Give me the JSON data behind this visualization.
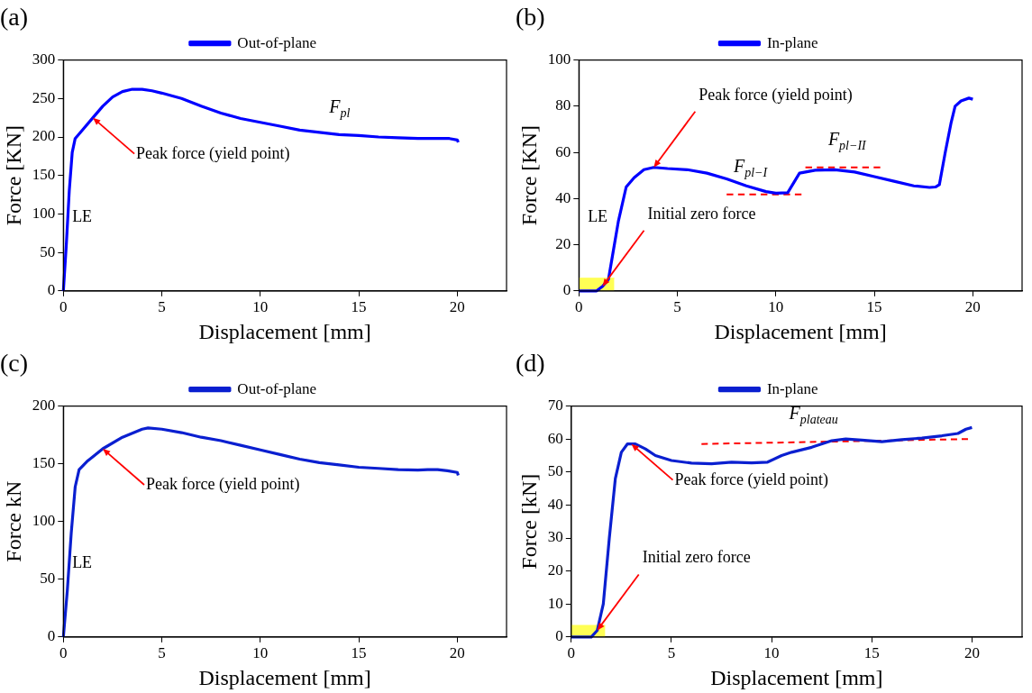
{
  "chart_data": [
    {
      "type": "line",
      "title": "(a)",
      "xlabel": "Displacement [mm]",
      "ylabel": "Force [KN]",
      "xlim": [
        0,
        22.5
      ],
      "xticks": [
        0,
        5,
        10,
        15,
        20
      ],
      "ylim": [
        0,
        300
      ],
      "yticks": [
        0,
        50,
        100,
        150,
        200,
        250,
        300
      ],
      "legend": "top",
      "marker": "none",
      "grid": false,
      "series": [
        {
          "name": "Out-of-plane",
          "color": "#0000ff",
          "x": [
            0,
            0.15,
            0.3,
            0.45,
            0.6,
            1,
            1.5,
            2,
            2.5,
            3,
            3.5,
            4,
            4.5,
            5,
            6,
            7,
            8,
            9,
            10,
            11,
            12,
            13,
            14,
            15,
            16,
            17,
            18,
            19,
            19.6,
            20,
            20.05
          ],
          "values": [
            0,
            60,
            130,
            180,
            198,
            210,
            225,
            240,
            252,
            259,
            262,
            262,
            260,
            257,
            250,
            240,
            231,
            224,
            219,
            214,
            209,
            206,
            203,
            202,
            200,
            199,
            198,
            198,
            198,
            196,
            193
          ]
        }
      ],
      "annotations": [
        "LE",
        "F$_{pl}$",
        {
          "text": "Peak force (yield point)",
          "x": 1.5,
          "y": 225
        }
      ]
    },
    {
      "type": "line",
      "title": "(b)",
      "xlabel": "Displacement [mm]",
      "ylabel": "Force [KN]",
      "xlim": [
        0,
        22.5
      ],
      "xticks": [
        0,
        5,
        10,
        15,
        20
      ],
      "ylim": [
        0,
        100
      ],
      "yticks": [
        0,
        20,
        40,
        60,
        80,
        100
      ],
      "legend": "top",
      "marker": "none",
      "grid": false,
      "series": [
        {
          "type": "area",
          "color": "#ffff55",
          "x": [
            0,
            1.8
          ],
          "values": [
            5.5,
            5.5
          ]
        },
        {
          "name": "In-plane",
          "color": "#0000ff",
          "x": [
            0,
            0.9,
            1.2,
            1.5,
            1.7,
            2,
            2.4,
            2.8,
            3.3,
            3.8,
            4.5,
            5.5,
            6.5,
            7.5,
            8.5,
            9.5,
            10,
            10.6,
            11.2,
            12,
            13,
            14,
            15,
            16,
            17,
            17.8,
            18.1,
            18.3,
            18.6,
            18.9,
            19.1,
            19.4,
            19.8,
            20
          ],
          "values": [
            0,
            0,
            2,
            5,
            15,
            30,
            45,
            49,
            52.5,
            53.5,
            53,
            52.5,
            51,
            48.5,
            45.5,
            43,
            42.3,
            42.5,
            51,
            52.3,
            52.5,
            51.5,
            49.5,
            47.5,
            45.5,
            44.8,
            45,
            46,
            60,
            73,
            80,
            82.3,
            83.5,
            83
          ]
        },
        {
          "color": "#ff0000",
          "line_style": "dashed",
          "x": [
            7.5,
            11.3
          ],
          "values": [
            41.8,
            41.8
          ]
        },
        {
          "color": "#ff0000",
          "line_style": "dashed",
          "x": [
            11.5,
            15.3
          ],
          "values": [
            53.5,
            53.5
          ]
        }
      ],
      "annotations": [
        {
          "text": "Peak force (yield point)",
          "x": 3.8,
          "y": 53.5
        },
        {
          "text": "F$_{pl−I}$",
          "x": 9,
          "y": 41.8
        },
        {
          "text": "F$_{pl−II}$",
          "x": 13.8,
          "y": 53.5
        },
        "LE",
        {
          "text": "Initial zero force",
          "x": 1.2,
          "y": 2
        }
      ]
    },
    {
      "type": "line",
      "title": "(c)",
      "xlabel": "Displacement [mm]",
      "ylabel": "Force kN",
      "xlim": [
        0,
        22.5
      ],
      "xticks": [
        0,
        5,
        10,
        15,
        20
      ],
      "ylim": [
        0,
        200
      ],
      "yticks": [
        0,
        50,
        100,
        150,
        200
      ],
      "legend": "top",
      "marker": "none",
      "grid": false,
      "series": [
        {
          "name": "Out-of-plane",
          "color": "#0a1fd0",
          "x": [
            0,
            0.2,
            0.4,
            0.6,
            0.8,
            1.2,
            2,
            3,
            4,
            4.3,
            5,
            6,
            7,
            8,
            9,
            10,
            11,
            12,
            13,
            14,
            15,
            16,
            17,
            18,
            18.5,
            19,
            19.5,
            20,
            20.05
          ],
          "values": [
            0,
            40,
            90,
            130,
            145,
            152,
            163,
            173,
            180,
            181,
            180,
            177,
            173,
            170,
            166,
            162,
            158,
            154,
            151,
            149,
            147,
            146,
            145,
            144.5,
            145,
            145,
            144,
            142.5,
            140
          ]
        }
      ],
      "annotations": [
        {
          "text": "Peak force (yield point)",
          "x": 2,
          "y": 163
        },
        "LE"
      ]
    },
    {
      "type": "line",
      "title": "(d)",
      "xlabel": "Displacement [mm]",
      "ylabel": "Force [kN]",
      "xlim": [
        0,
        22.5
      ],
      "xticks": [
        0,
        5,
        10,
        15,
        20
      ],
      "ylim": [
        0,
        70
      ],
      "yticks": [
        0,
        10,
        20,
        30,
        40,
        50,
        60,
        70
      ],
      "legend": "top",
      "marker": "none",
      "grid": false,
      "series": [
        {
          "type": "area",
          "color": "#ffff55",
          "x": [
            0,
            1.7
          ],
          "values": [
            3.5,
            3.5
          ]
        },
        {
          "name": "In-plane",
          "color": "#0a1fd0",
          "x": [
            0,
            1,
            1.3,
            1.6,
            1.9,
            2.2,
            2.5,
            2.8,
            3.2,
            3.7,
            4.2,
            5,
            6,
            7,
            8,
            9,
            9.8,
            10.5,
            11,
            12,
            13,
            13.7,
            14.5,
            15.5,
            16.5,
            17.5,
            18.5,
            19.3,
            19.7,
            20
          ],
          "values": [
            0,
            0,
            2,
            10,
            30,
            48,
            56,
            58.5,
            58.5,
            57,
            55,
            53.5,
            52.7,
            52.5,
            53,
            52.8,
            53,
            55,
            56,
            57.5,
            59.5,
            60,
            59.7,
            59.2,
            59.8,
            60.3,
            61,
            61.7,
            63,
            63.5
          ]
        },
        {
          "color": "#ff0000",
          "line_style": "dashed",
          "x": [
            6.5,
            19.8
          ],
          "values": [
            58.5,
            60
          ]
        }
      ],
      "annotations": [
        {
          "text": "F$_{plateau}$",
          "x": 12,
          "y": 59.2
        },
        {
          "text": "Peak force (yield point)",
          "x": 3,
          "y": 58.5
        },
        {
          "text": "Initial zero force",
          "x": 1.3,
          "y": 2
        }
      ]
    }
  ]
}
